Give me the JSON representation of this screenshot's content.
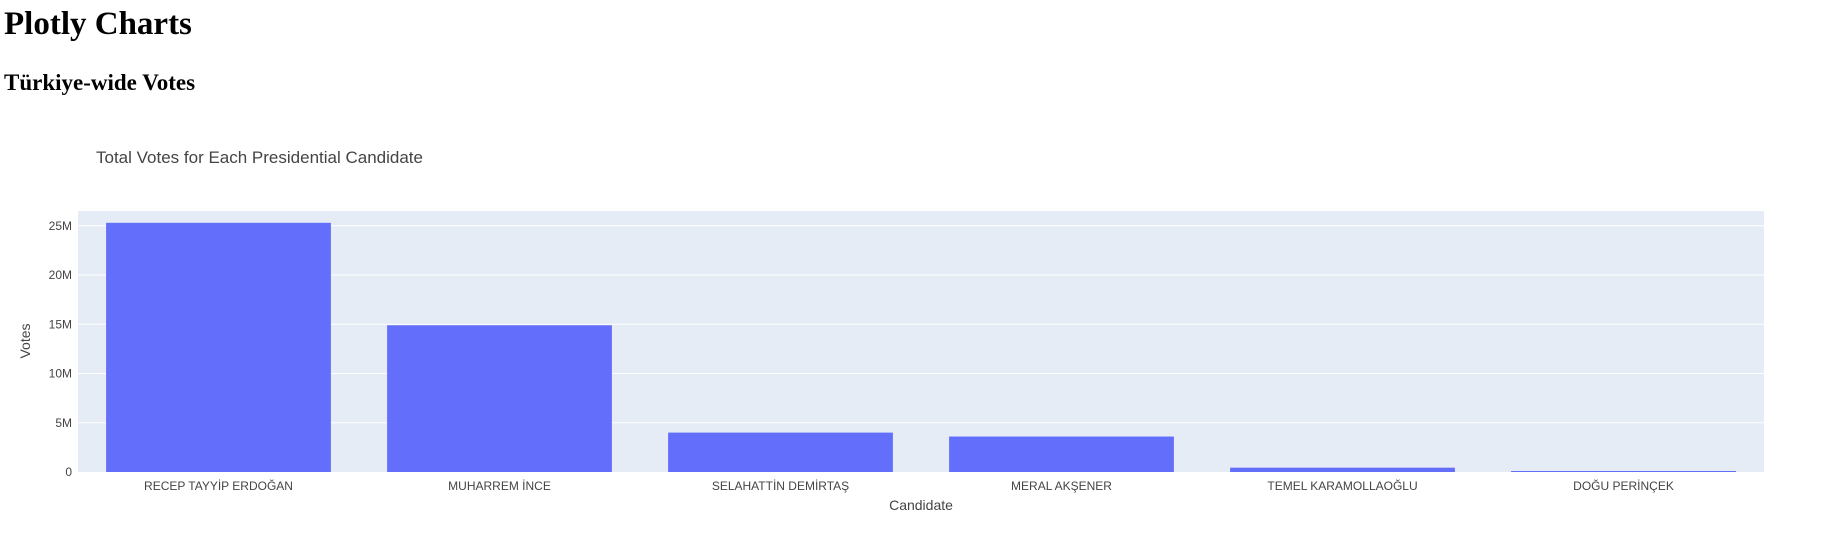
{
  "page": {
    "title": "Plotly Charts",
    "section_title": "Türkiye-wide Votes"
  },
  "colors": {
    "bar": "#636efa",
    "plot_bg": "#e5ecf6",
    "grid": "#ffffff",
    "text": "#444444"
  },
  "chart_data": {
    "type": "bar",
    "title": "Total Votes for Each Presidential Candidate",
    "xlabel": "Candidate",
    "ylabel": "Votes",
    "categories": [
      "RECEP TAYYİP ERDOĞAN",
      "MUHARREM İNCE",
      "SELAHATTİN DEMİRTAŞ",
      "MERAL AKŞENER",
      "TEMEL KARAMOLLAOĞLU",
      "DOĞU PERİNÇEK"
    ],
    "values": [
      25300000,
      14900000,
      4000000,
      3600000,
      440000,
      100000
    ],
    "ylim": [
      0,
      26500000
    ],
    "yticks": [
      0,
      5000000,
      10000000,
      15000000,
      20000000,
      25000000
    ],
    "ytick_labels": [
      "0",
      "5M",
      "10M",
      "15M",
      "20M",
      "25M"
    ],
    "grid": true,
    "legend": "none"
  }
}
